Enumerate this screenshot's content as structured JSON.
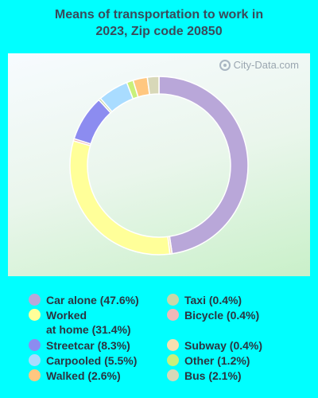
{
  "title_line1": "Means of transportation to work in",
  "title_line2": "2023, Zip code 20850",
  "watermark": "City-Data.com",
  "chart_data": {
    "type": "pie",
    "style": "donut",
    "title": "Means of transportation to work in 2023, Zip code 20850",
    "slices": [
      {
        "label": "Car alone (47.6%)",
        "value": 47.6,
        "color": "#b9a7d9"
      },
      {
        "label": "Worked at home (31.4%)",
        "value": 31.4,
        "color": "#ffff99"
      },
      {
        "label": "Streetcar (8.3%)",
        "value": 8.3,
        "color": "#8c8cf0"
      },
      {
        "label": "Carpooled (5.5%)",
        "value": 5.5,
        "color": "#a9dcff"
      },
      {
        "label": "Walked (2.6%)",
        "value": 2.6,
        "color": "#ffc780"
      },
      {
        "label": "Taxi (0.4%)",
        "value": 0.4,
        "color": "#c8d8a8"
      },
      {
        "label": "Bicycle (0.4%)",
        "value": 0.4,
        "color": "#f0b8b8"
      },
      {
        "label": "Subway (0.4%)",
        "value": 0.4,
        "color": "#f9dfb0"
      },
      {
        "label": "Other (1.2%)",
        "value": 1.2,
        "color": "#c9f07a"
      },
      {
        "label": "Bus (2.1%)",
        "value": 2.1,
        "color": "#d8d8b8"
      }
    ],
    "draw_order": [
      "Car alone (47.6%)",
      "Subway (0.4%)",
      "Worked at home (31.4%)",
      "Bicycle (0.4%)",
      "Streetcar (8.3%)",
      "Taxi (0.4%)",
      "Carpooled (5.5%)",
      "Other (1.2%)",
      "Walked (2.6%)",
      "Bus (2.1%)"
    ]
  },
  "legend": {
    "left": [
      {
        "line1": "Car alone (47.6%)",
        "color": "#b9a7d9"
      },
      {
        "line1": "Worked",
        "line2": "at home (31.4%)",
        "color": "#ffff99"
      },
      {
        "line1": "Streetcar (8.3%)",
        "color": "#8c8cf0"
      },
      {
        "line1": "Carpooled (5.5%)",
        "color": "#a9dcff"
      },
      {
        "line1": "Walked (2.6%)",
        "color": "#ffc780"
      }
    ],
    "right": [
      {
        "line1": "Taxi (0.4%)",
        "color": "#c8d8a8"
      },
      {
        "line1": "Bicycle (0.4%)",
        "color": "#f0b8b8"
      },
      {
        "line1": "Subway (0.4%)",
        "color": "#f9dfb0"
      },
      {
        "line1": "Other (1.2%)",
        "color": "#c9f07a"
      },
      {
        "line1": "Bus (2.1%)",
        "color": "#d8d8b8"
      }
    ]
  }
}
